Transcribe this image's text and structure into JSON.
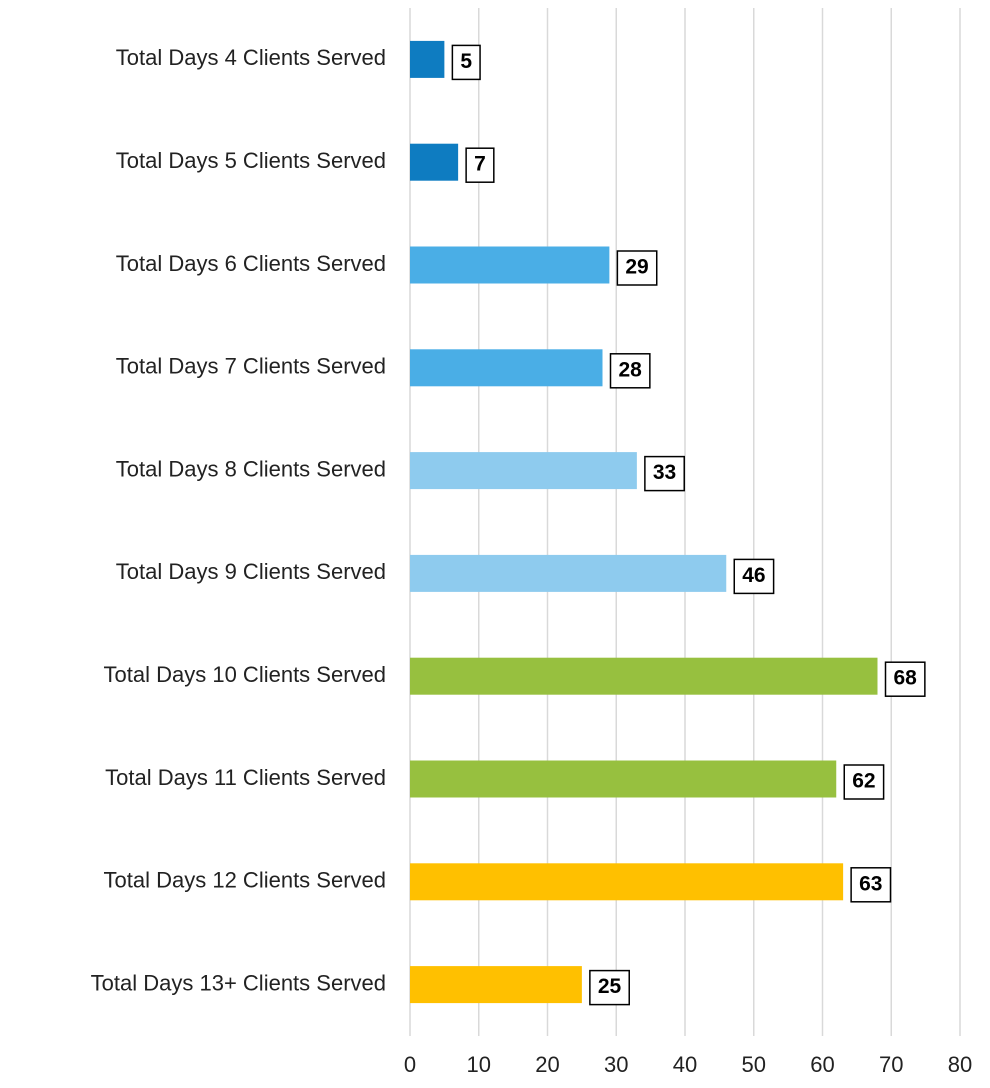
{
  "chart_data": {
    "type": "bar",
    "orientation": "horizontal",
    "categories": [
      "Total Days 4 Clients Served",
      "Total Days 5 Clients Served",
      "Total Days 6 Clients Served",
      "Total Days 7 Clients Served",
      "Total Days 8 Clients Served",
      "Total Days 9 Clients Served",
      "Total Days 10 Clients Served",
      "Total Days 11 Clients Served",
      "Total Days 12 Clients Served",
      "Total Days 13+ Clients Served"
    ],
    "values": [
      5,
      7,
      29,
      28,
      33,
      46,
      68,
      62,
      63,
      25
    ],
    "colors": [
      "#0e7cc1",
      "#0e7cc1",
      "#4aaee6",
      "#4aaee6",
      "#8ecbee",
      "#8ecbee",
      "#97c03f",
      "#97c03f",
      "#ffc000",
      "#ffc000"
    ],
    "xlim": [
      0,
      80
    ],
    "xticks": [
      0,
      10,
      20,
      30,
      40,
      50,
      60,
      70,
      80
    ],
    "grid": true
  }
}
